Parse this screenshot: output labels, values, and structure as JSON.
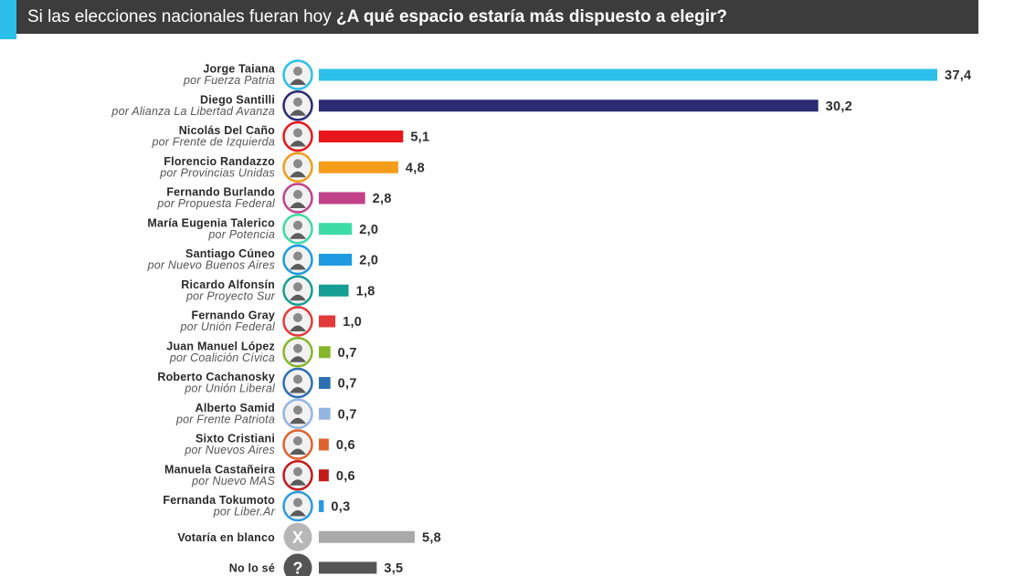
{
  "header": {
    "question_plain": "Si las elecciones nacionales fueran hoy",
    "question_bold": "¿A qué espacio estaría más dispuesto a elegir?",
    "bar_color": "#3c3c3c",
    "accent_color": "#2bbfe9"
  },
  "chart_data": {
    "type": "bar",
    "orientation": "horizontal",
    "title": "Si las elecciones nacionales fueran hoy ¿A qué espacio estaría más dispuesto a elegir?",
    "xlim": [
      0,
      37.4
    ],
    "grid": false,
    "legend": "none",
    "categories": [
      {
        "name": "Jorge Taiana",
        "party": "por Fuerza Patria",
        "value": 37.4,
        "label": "37,4",
        "color": "#2bbfe9",
        "icon": "candidate-photo"
      },
      {
        "name": "Diego Santilli",
        "party": "por Alianza La Libertad Avanza",
        "value": 30.2,
        "label": "30,2",
        "color": "#2b2a74",
        "icon": "candidate-photo"
      },
      {
        "name": "Nicolás Del Caño",
        "party": "por Frente de Izquierda",
        "value": 5.1,
        "label": "5,1",
        "color": "#e8161b",
        "icon": "candidate-photo"
      },
      {
        "name": "Florencio Randazzo",
        "party": "por Provincias Unidas",
        "value": 4.8,
        "label": "4,8",
        "color": "#f59c1a",
        "icon": "candidate-photo"
      },
      {
        "name": "Fernando Burlando",
        "party": "por Propuesta Federal",
        "value": 2.8,
        "label": "2,8",
        "color": "#c2428a",
        "icon": "candidate-photo"
      },
      {
        "name": "María Eugenia Talerico",
        "party": "por Potencia",
        "value": 2.0,
        "label": "2,0",
        "color": "#3ddba5",
        "icon": "candidate-photo"
      },
      {
        "name": "Santiago Cúneo",
        "party": "por Nuevo Buenos Aires",
        "value": 2.0,
        "label": "2,0",
        "color": "#1e9be0",
        "icon": "candidate-photo"
      },
      {
        "name": "Ricardo Alfonsín",
        "party": "por Proyecto Sur",
        "value": 1.8,
        "label": "1,8",
        "color": "#169e94",
        "icon": "candidate-photo"
      },
      {
        "name": "Fernando Gray",
        "party": "por Unión Federal",
        "value": 1.0,
        "label": "1,0",
        "color": "#e43a3a",
        "icon": "candidate-photo"
      },
      {
        "name": "Juan Manuel López",
        "party": "por Coalición Cívica",
        "value": 0.7,
        "label": "0,7",
        "color": "#86b72a",
        "icon": "candidate-photo"
      },
      {
        "name": "Roberto Cachanosky",
        "party": "por Unión Liberal",
        "value": 0.7,
        "label": "0,7",
        "color": "#2d6fb5",
        "icon": "candidate-photo"
      },
      {
        "name": "Alberto Samid",
        "party": "por Frente Patriota",
        "value": 0.7,
        "label": "0,7",
        "color": "#93b5e3",
        "icon": "candidate-photo"
      },
      {
        "name": "Sixto Cristiani",
        "party": "por Nuevos Aires",
        "value": 0.6,
        "label": "0,6",
        "color": "#e0622e",
        "icon": "candidate-photo"
      },
      {
        "name": "Manuela Castañeira",
        "party": "por Nuevo MAS",
        "value": 0.6,
        "label": "0,6",
        "color": "#c31a1a",
        "icon": "candidate-photo"
      },
      {
        "name": "Fernanda Tokumoto",
        "party": "por Liber.Ar",
        "value": 0.3,
        "label": "0,3",
        "color": "#2a9be0",
        "icon": "candidate-photo"
      },
      {
        "name": "Votaría en blanco",
        "party": "",
        "value": 5.8,
        "label": "5,8",
        "color": "#a9a9a9",
        "icon": "x-icon",
        "symbol": "X"
      },
      {
        "name": "No lo sé",
        "party": "",
        "value": 3.5,
        "label": "3,5",
        "color": "#555555",
        "icon": "question-icon",
        "symbol": "?"
      }
    ]
  }
}
